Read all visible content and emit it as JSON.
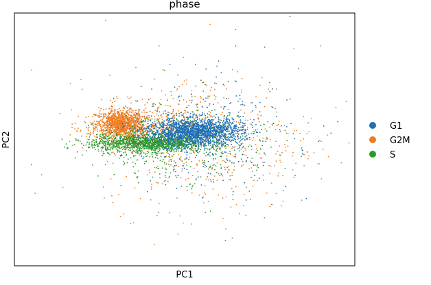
{
  "chart_data": {
    "type": "scatter",
    "title": "phase",
    "xlabel": "PC1",
    "ylabel": "PC2",
    "xlim": [
      -10,
      10
    ],
    "ylim": [
      -10,
      10
    ],
    "grid": false,
    "ticks": false,
    "legend_position": "right",
    "series": [
      {
        "name": "G1",
        "color": "#1f6fb2",
        "label": "G1",
        "clusters": [
          {
            "cx": 0.6,
            "cy": 0.6,
            "sx": 1.4,
            "sy": 0.55,
            "n": 1900
          },
          {
            "cx": 1.6,
            "cy": 0.3,
            "sx": 2.4,
            "sy": 2.2,
            "n": 220
          }
        ],
        "x_scatter": [
          3.0,
          4.7,
          6.2,
          5.4,
          -0.4,
          1.9,
          6.7,
          7.2,
          2.0,
          8.6,
          9.0,
          6.0
        ],
        "y_scatter": [
          8.7,
          7.3,
          3.2,
          1.8,
          5.1,
          5.8,
          5.6,
          -1.0,
          6.2,
          0.5,
          1.4,
          1.0
        ]
      },
      {
        "name": "G2M",
        "color": "#f07c22",
        "label": "G2M",
        "clusters": [
          {
            "cx": -3.8,
            "cy": 1.2,
            "sx": 0.7,
            "sy": 0.55,
            "n": 1100
          },
          {
            "cx": -2.5,
            "cy": 0.9,
            "sx": 1.6,
            "sy": 0.9,
            "n": 500
          },
          {
            "cx": 1.5,
            "cy": -0.2,
            "sx": 3.1,
            "sy": 2.7,
            "n": 520
          }
        ],
        "x_scatter": [
          -6.7,
          -8.4,
          9.5,
          1.5,
          -1.5,
          8.0,
          3.6,
          -3.0
        ],
        "y_scatter": [
          4.4,
          -2.8,
          3.0,
          9.1,
          7.4,
          7.4,
          -6.0,
          -6.6
        ]
      },
      {
        "name": "S",
        "color": "#2a9b2a",
        "label": "S",
        "clusters": [
          {
            "cx": -2.2,
            "cy": -0.3,
            "sx": 1.7,
            "sy": 0.35,
            "n": 1300
          },
          {
            "cx": -0.8,
            "cy": -0.6,
            "sx": 2.2,
            "sy": 1.3,
            "n": 350
          },
          {
            "cx": 1.0,
            "cy": 0.5,
            "sx": 2.6,
            "sy": 2.1,
            "n": 160
          }
        ],
        "x_scatter": [
          -9.0,
          3.0,
          2.8,
          -1.2,
          5.0,
          -4.8,
          2.4
        ],
        "y_scatter": [
          -2.0,
          7.4,
          -7.8,
          -3.3,
          4.5,
          0.3,
          -8.0
        ]
      }
    ]
  }
}
